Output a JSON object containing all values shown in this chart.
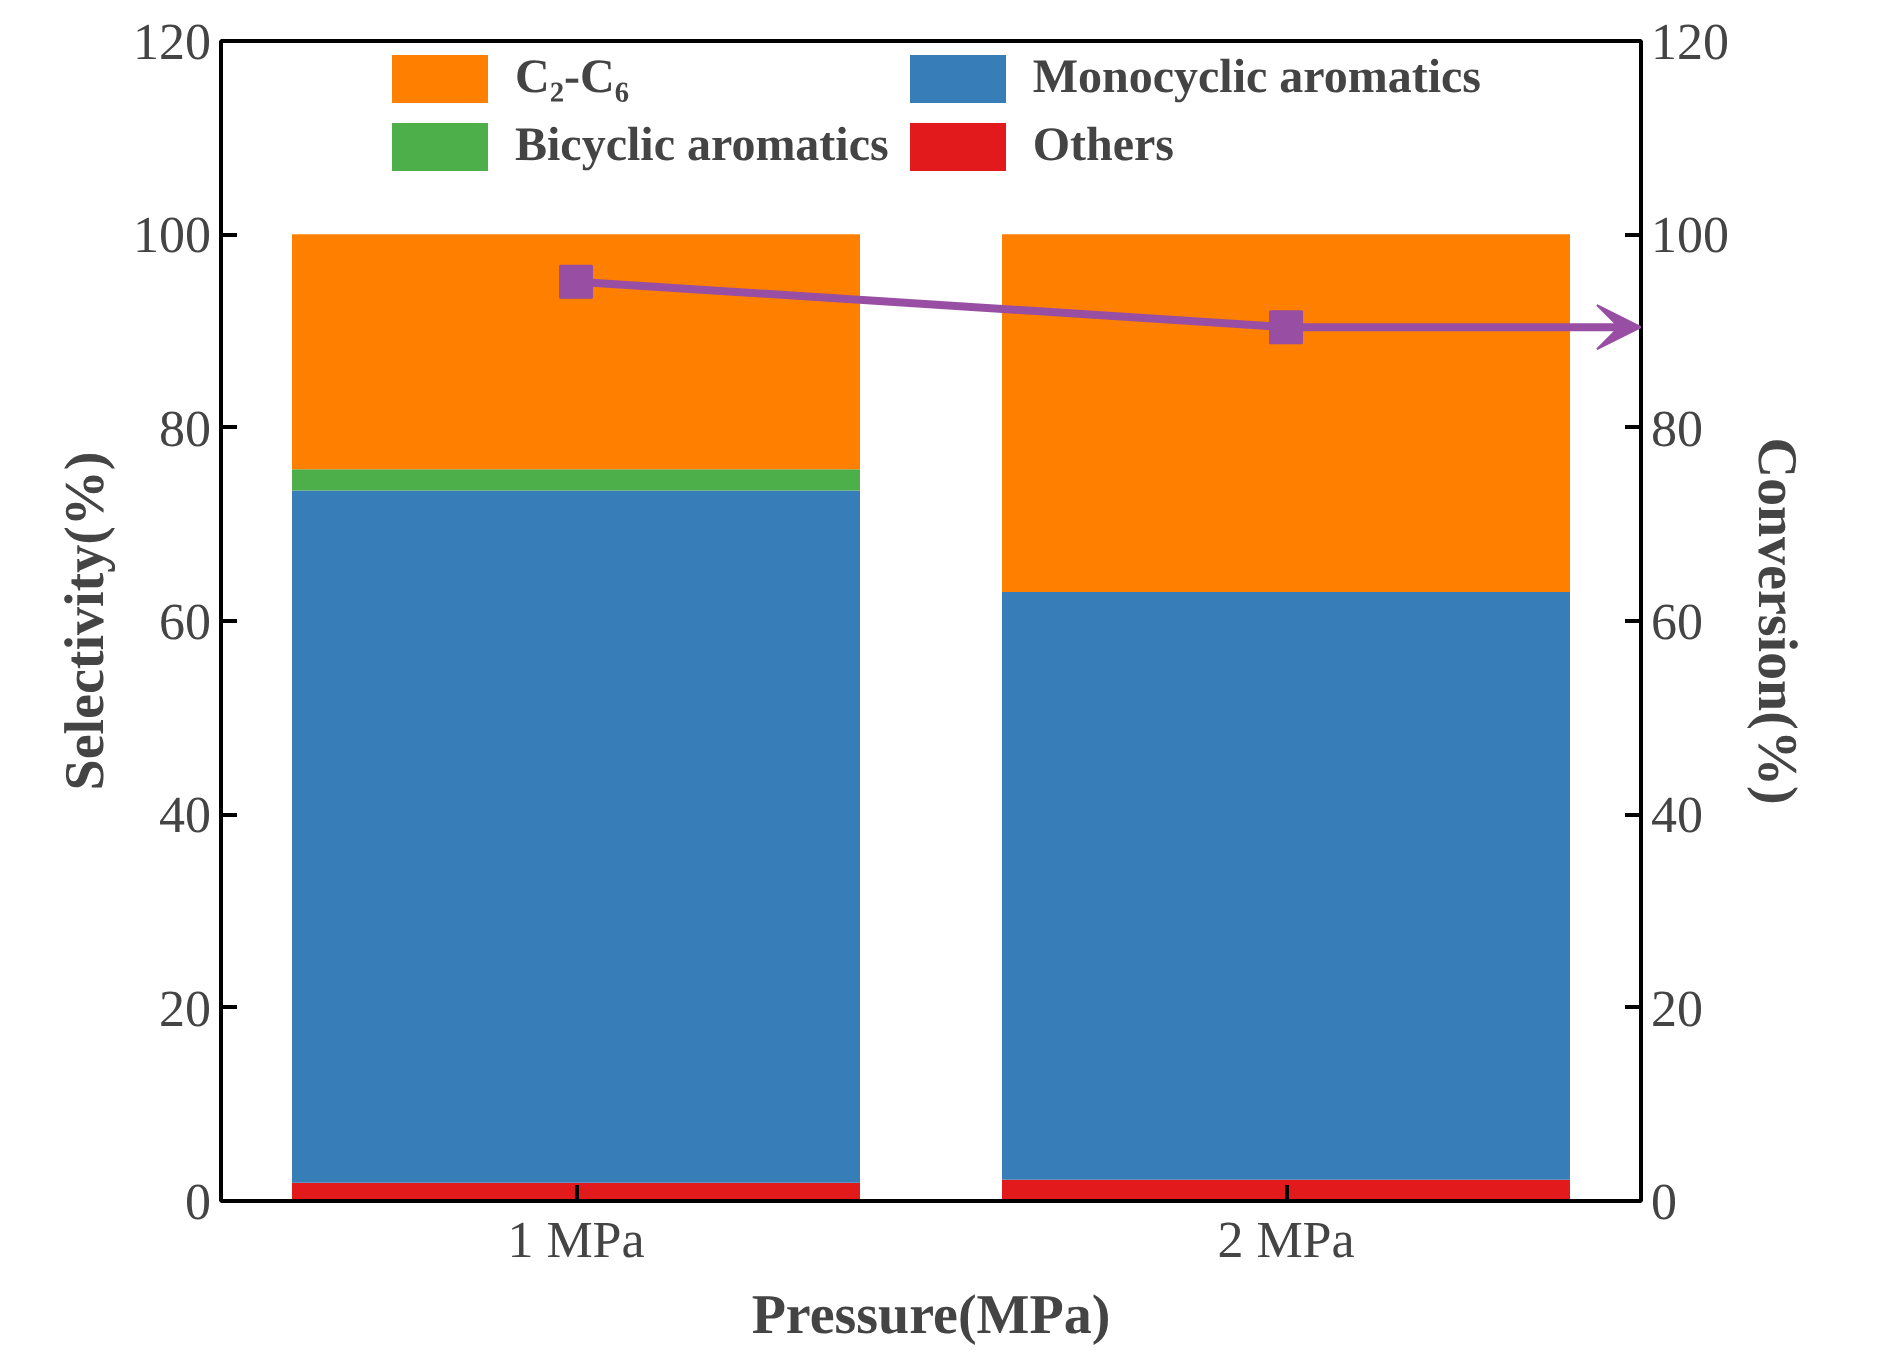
{
  "chart_data": {
    "type": "bar",
    "stacked": true,
    "xlabel": "Pressure(MPa)",
    "ylabel": "Selectivity(%)",
    "y2label": "Conversion(%)",
    "categories": [
      "1 MPa",
      "2 MPa"
    ],
    "series": [
      {
        "name": "Others",
        "color": "#e31a1c",
        "values": [
          1.9,
          2.2
        ]
      },
      {
        "name": "Monocyclic aromatics",
        "color": "#377eb8",
        "values": [
          71.6,
          60.8
        ]
      },
      {
        "name": "Bicyclic aromatics",
        "color": "#4daf4a",
        "values": [
          2.2,
          0
        ]
      },
      {
        "name": "C₂-C₆",
        "color": "#ff7f00",
        "values": [
          24.3,
          37.0
        ]
      },
      {
        "type": "line",
        "axis": "y2",
        "color": "#984ea3",
        "marker": "square",
        "values": [
          95.1,
          90.4
        ]
      }
    ],
    "ylim": [
      0,
      120
    ],
    "yticks": [
      0,
      20,
      40,
      60,
      80,
      100,
      120
    ],
    "y2lim": [
      0,
      120
    ],
    "y2ticks": [
      0,
      20,
      40,
      60,
      80,
      100,
      120
    ],
    "grid": false,
    "legend": "top"
  }
}
